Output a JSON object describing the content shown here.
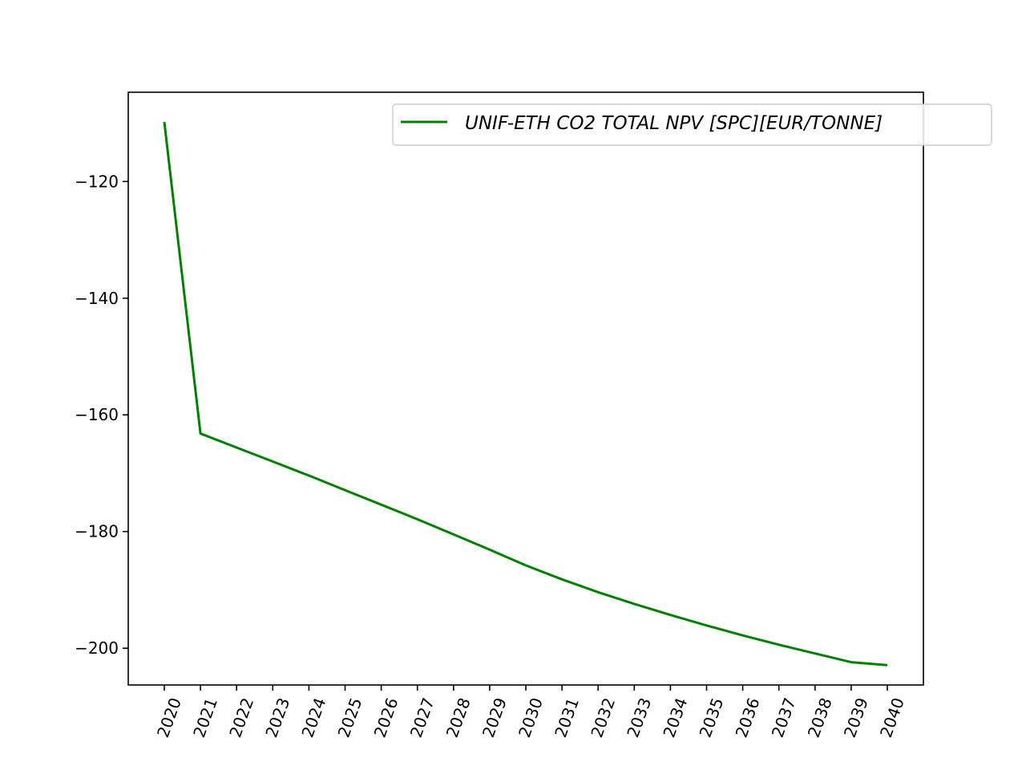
{
  "chart_data": {
    "type": "line",
    "title": "",
    "xlabel": "",
    "ylabel": "",
    "x": [
      "2020",
      "2021",
      "2022",
      "2023",
      "2024",
      "2025",
      "2026",
      "2027",
      "2028",
      "2029",
      "2030",
      "2031",
      "2032",
      "2033",
      "2034",
      "2035",
      "2036",
      "2037",
      "2038",
      "2039",
      "2040"
    ],
    "series": [
      {
        "name": "UNIF-ETH CO2 TOTAL NPV [SPC][EUR/TONNE]",
        "color": "#008000",
        "values": [
          -109.8,
          -163.2,
          -165.6,
          -168.0,
          -170.4,
          -172.9,
          -175.4,
          -177.9,
          -180.5,
          -183.1,
          -185.8,
          -188.2,
          -190.4,
          -192.4,
          -194.3,
          -196.1,
          -197.8,
          -199.4,
          -200.9,
          -202.4,
          -202.9
        ]
      }
    ],
    "yticks": [
      -120,
      -140,
      -160,
      -180,
      -200
    ],
    "ytick_labels": [
      "−120",
      "−140",
      "−160",
      "−180",
      "−200"
    ],
    "ylim": [
      -206.3,
      -104.7
    ],
    "grid": false,
    "legend_position": "top-right",
    "xtick_rotation": "rotated"
  }
}
